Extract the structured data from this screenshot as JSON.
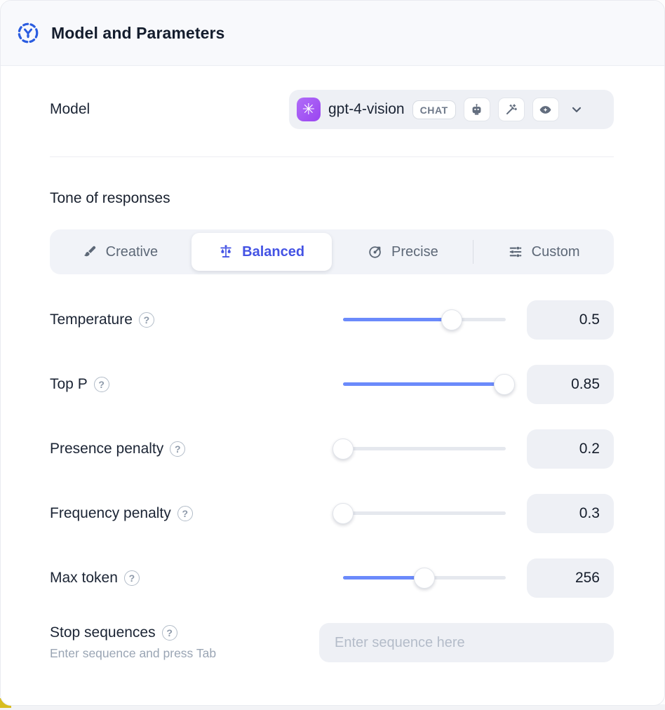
{
  "header": {
    "title": "Model and Parameters"
  },
  "model_row": {
    "label": "Model",
    "model_name": "gpt-4-vision",
    "badge": "CHAT",
    "capability_icons": [
      "robot-icon",
      "magic-wand-icon",
      "vision-eye-icon"
    ]
  },
  "tone": {
    "label": "Tone of responses",
    "options": [
      {
        "label": "Creative",
        "icon": "paintbrush-icon",
        "selected": false
      },
      {
        "label": "Balanced",
        "icon": "balance-scale-icon",
        "selected": true
      },
      {
        "label": "Precise",
        "icon": "target-arrow-icon",
        "selected": false
      },
      {
        "label": "Custom",
        "icon": "sliders-icon",
        "selected": false
      }
    ]
  },
  "parameters": [
    {
      "label": "Temperature",
      "value": "0.5",
      "fill_pct": 67
    },
    {
      "label": "Top P",
      "value": "0.85",
      "fill_pct": 99
    },
    {
      "label": "Presence penalty",
      "value": "0.2",
      "fill_pct": 0
    },
    {
      "label": "Frequency penalty",
      "value": "0.3",
      "fill_pct": 0
    },
    {
      "label": "Max token",
      "value": "256",
      "fill_pct": 50
    }
  ],
  "stop_sequences": {
    "label": "Stop sequences",
    "hint": "Enter sequence and press Tab",
    "placeholder": "Enter sequence here"
  },
  "colors": {
    "accent_indigo": "#4453e4",
    "slider_blue": "#6b8afb",
    "brand_purple": "#9a45f0",
    "header_bg": "#f8f9fc",
    "field_bg": "#eef0f5"
  }
}
